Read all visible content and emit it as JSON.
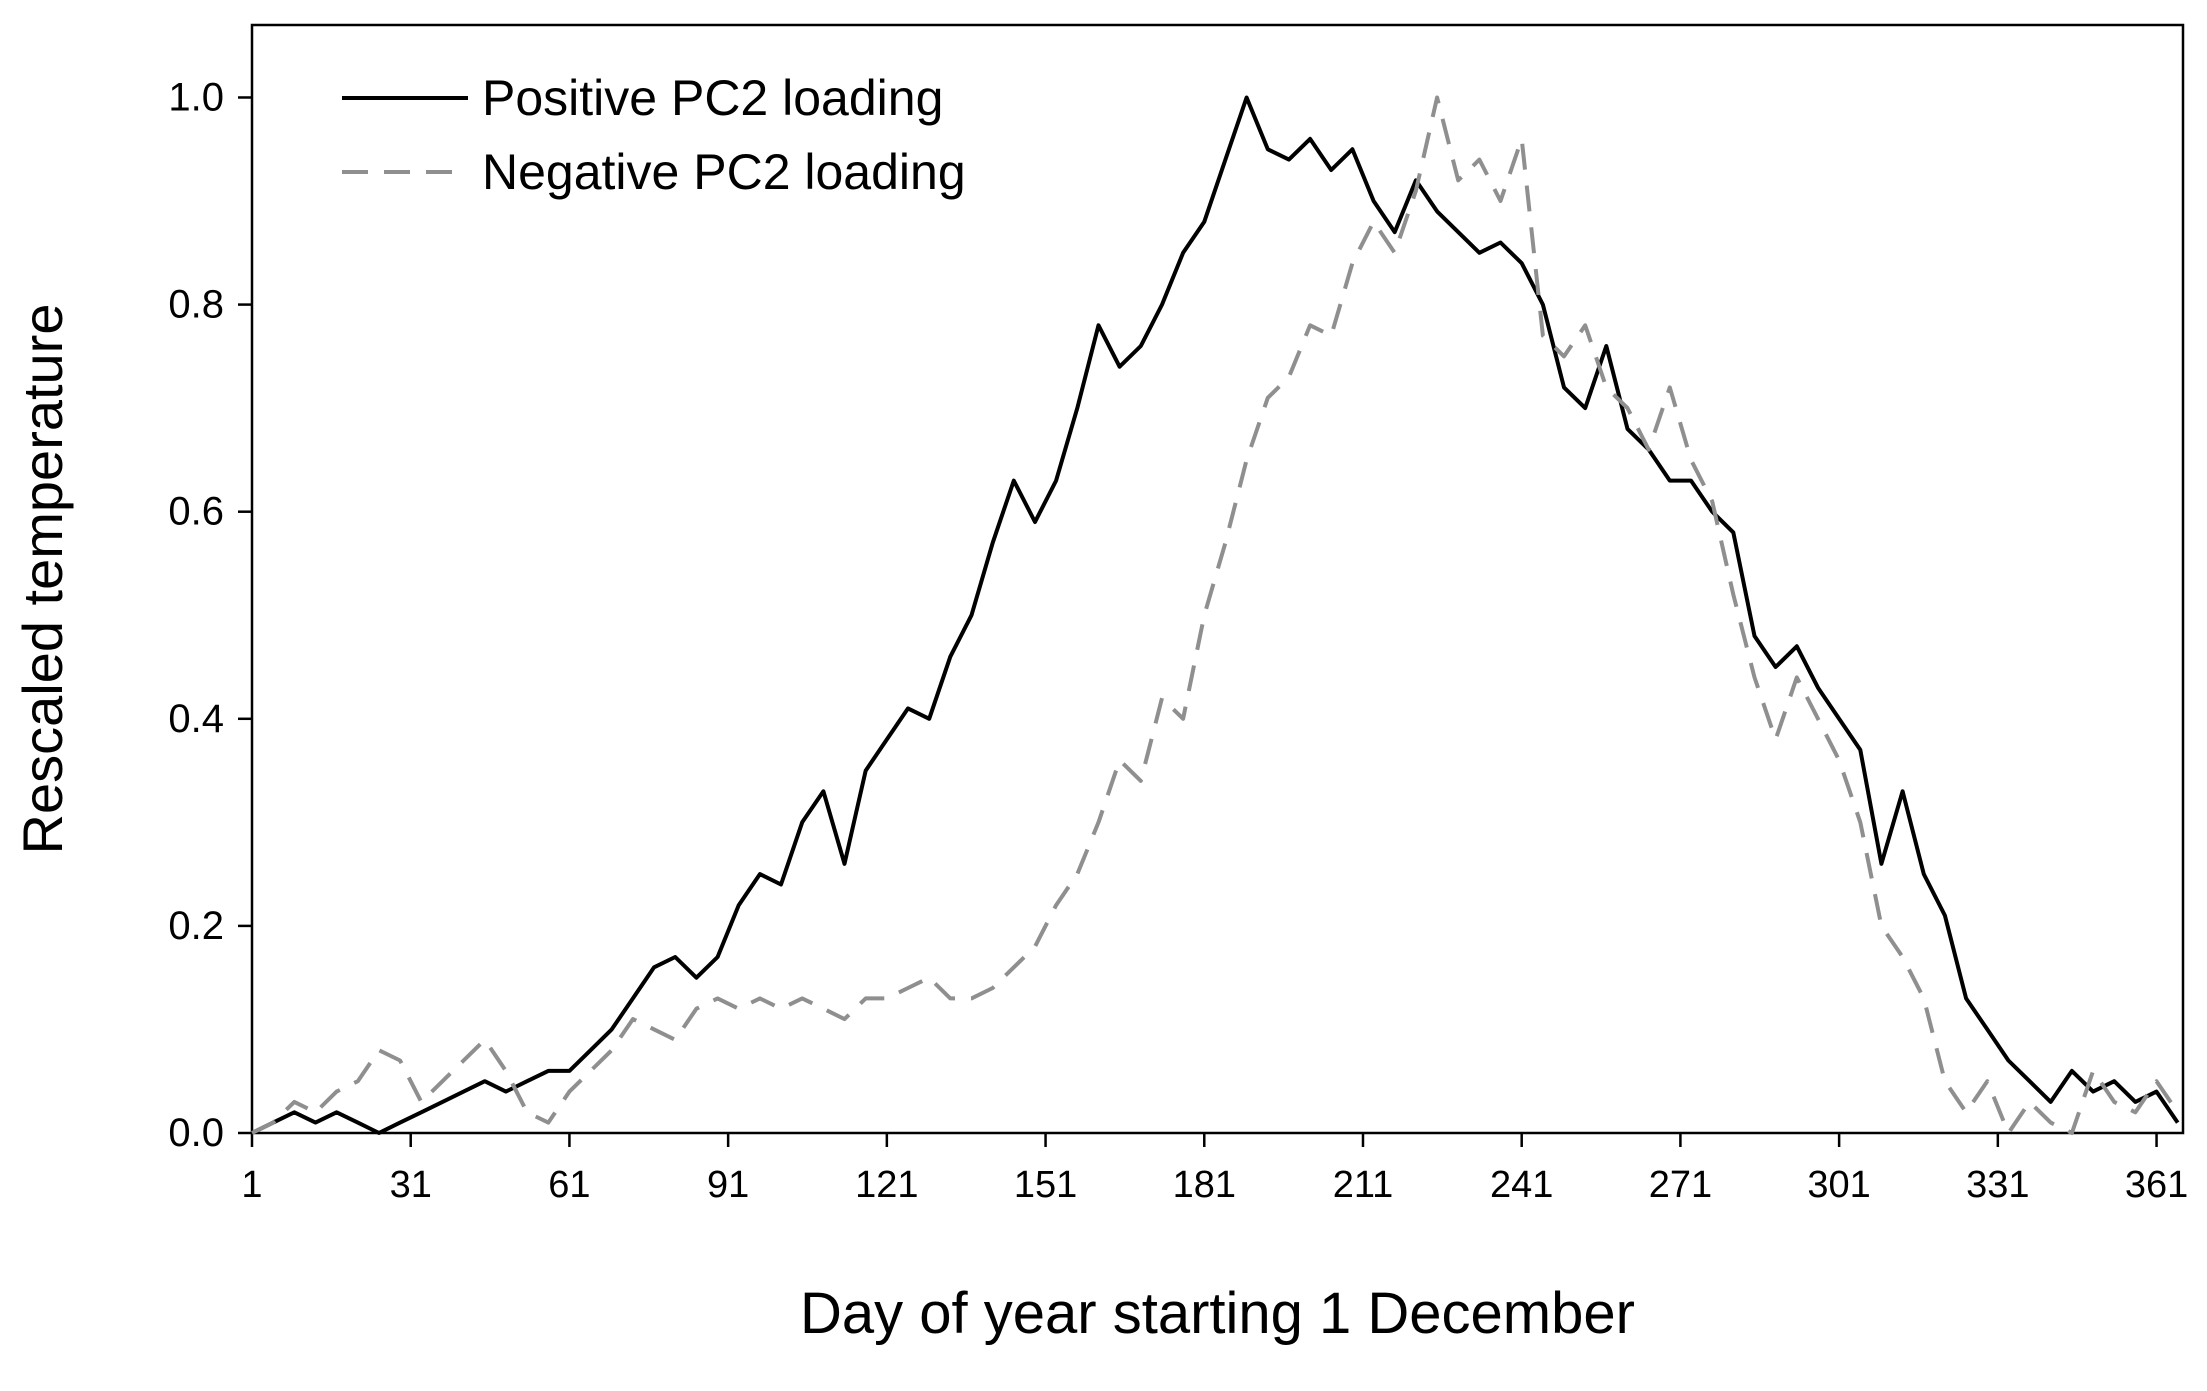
{
  "figure": {
    "background": "#ffffff",
    "axis_color": "#000000"
  },
  "chart_data": {
    "type": "line",
    "title": "",
    "xlabel": "Day of year starting  1 December",
    "ylabel": "Rescaled temperature",
    "xlim": [
      1,
      366
    ],
    "ylim": [
      0,
      1.07
    ],
    "xticks": [
      1,
      31,
      61,
      91,
      121,
      151,
      181,
      211,
      241,
      271,
      301,
      331,
      361
    ],
    "yticks": [
      0.0,
      0.2,
      0.4,
      0.6,
      0.8,
      1.0
    ],
    "ytick_labels": [
      "0.0",
      "0.2",
      "0.4",
      "0.6",
      "0.8",
      "1.0"
    ],
    "grid": false,
    "legend_position": "top-left-inside",
    "x": [
      1,
      5,
      9,
      13,
      17,
      21,
      25,
      29,
      33,
      37,
      41,
      45,
      49,
      53,
      57,
      61,
      65,
      69,
      73,
      77,
      81,
      85,
      89,
      93,
      97,
      101,
      105,
      109,
      113,
      117,
      121,
      125,
      129,
      133,
      137,
      141,
      145,
      149,
      153,
      157,
      161,
      165,
      169,
      173,
      177,
      181,
      185,
      189,
      193,
      197,
      201,
      205,
      209,
      213,
      217,
      221,
      225,
      229,
      233,
      237,
      241,
      245,
      249,
      253,
      257,
      261,
      265,
      269,
      273,
      277,
      281,
      285,
      289,
      293,
      297,
      301,
      305,
      309,
      313,
      317,
      321,
      325,
      329,
      333,
      337,
      341,
      345,
      349,
      353,
      357,
      361,
      365
    ],
    "series": [
      {
        "name": "Positive PC2 loading",
        "color": "#000000",
        "style": "solid",
        "values": [
          0.0,
          0.01,
          0.02,
          0.01,
          0.02,
          0.01,
          0.0,
          0.01,
          0.02,
          0.03,
          0.04,
          0.05,
          0.04,
          0.05,
          0.06,
          0.06,
          0.08,
          0.1,
          0.13,
          0.16,
          0.17,
          0.15,
          0.17,
          0.22,
          0.25,
          0.24,
          0.3,
          0.33,
          0.26,
          0.35,
          0.38,
          0.41,
          0.4,
          0.46,
          0.5,
          0.57,
          0.63,
          0.59,
          0.63,
          0.7,
          0.78,
          0.74,
          0.76,
          0.8,
          0.85,
          0.88,
          0.94,
          1.0,
          0.95,
          0.94,
          0.96,
          0.93,
          0.95,
          0.9,
          0.87,
          0.92,
          0.89,
          0.87,
          0.85,
          0.86,
          0.84,
          0.8,
          0.72,
          0.7,
          0.76,
          0.68,
          0.66,
          0.63,
          0.63,
          0.6,
          0.58,
          0.48,
          0.45,
          0.47,
          0.43,
          0.4,
          0.37,
          0.26,
          0.33,
          0.25,
          0.21,
          0.13,
          0.1,
          0.07,
          0.05,
          0.03,
          0.06,
          0.04,
          0.05,
          0.03,
          0.04,
          0.01
        ]
      },
      {
        "name": "Negative PC2 loading",
        "color": "#8f8f8f",
        "style": "dashed",
        "values": [
          0.0,
          0.01,
          0.03,
          0.02,
          0.04,
          0.05,
          0.08,
          0.07,
          0.03,
          0.05,
          0.07,
          0.09,
          0.06,
          0.02,
          0.01,
          0.04,
          0.06,
          0.08,
          0.11,
          0.1,
          0.09,
          0.12,
          0.13,
          0.12,
          0.13,
          0.12,
          0.13,
          0.12,
          0.11,
          0.13,
          0.13,
          0.14,
          0.15,
          0.13,
          0.13,
          0.14,
          0.16,
          0.18,
          0.22,
          0.25,
          0.3,
          0.36,
          0.34,
          0.42,
          0.4,
          0.5,
          0.57,
          0.65,
          0.71,
          0.73,
          0.78,
          0.77,
          0.84,
          0.88,
          0.85,
          0.91,
          1.0,
          0.92,
          0.94,
          0.9,
          0.96,
          0.77,
          0.75,
          0.78,
          0.72,
          0.7,
          0.66,
          0.72,
          0.65,
          0.61,
          0.52,
          0.44,
          0.38,
          0.44,
          0.4,
          0.36,
          0.3,
          0.2,
          0.17,
          0.13,
          0.05,
          0.02,
          0.05,
          0.0,
          0.03,
          0.01,
          0.0,
          0.06,
          0.03,
          0.02,
          0.05,
          0.02
        ]
      }
    ]
  }
}
